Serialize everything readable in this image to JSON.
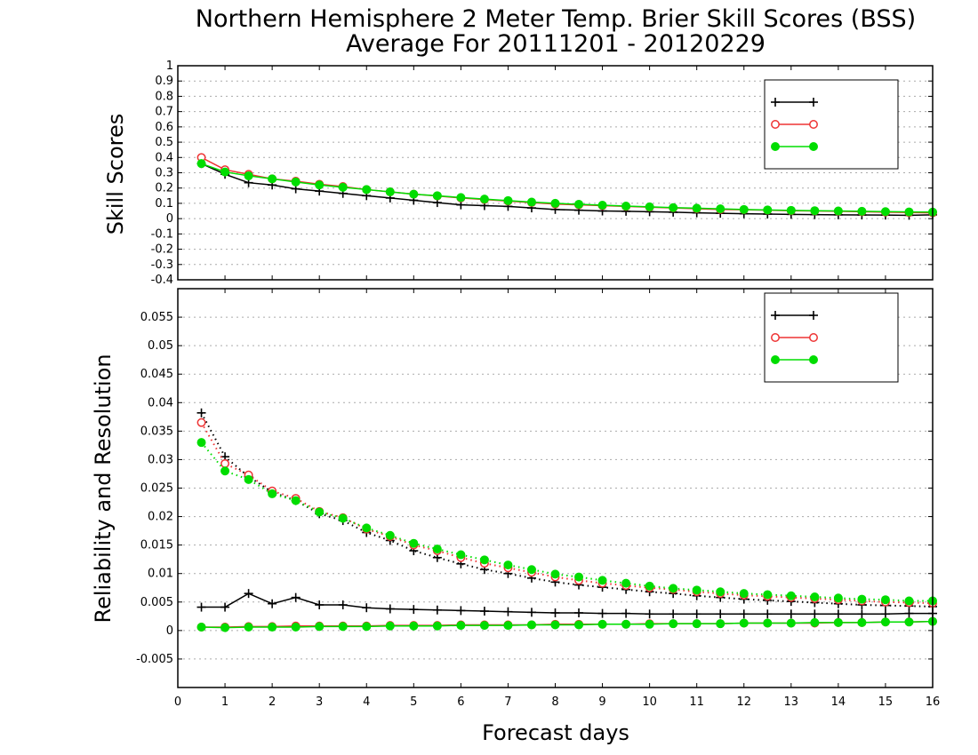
{
  "title_line1": "Northern Hemisphere 2 Meter Temp. Brier Skill Scores (BSS)",
  "title_line2": "Average For 20111201 - 20120229",
  "xlabel": "Forecast days",
  "colors": {
    "black": "#000000",
    "red": "#ee3333",
    "green": "#00dd00",
    "grid": "#aaaaaa"
  },
  "chart_data": [
    {
      "type": "line",
      "panel": "top",
      "ylabel": "Skill Scores",
      "ylim": [
        -0.4,
        1.0
      ],
      "yticks": [
        "-0.4",
        "-0.3",
        "-0.2",
        "-0.1",
        "0",
        "0.1",
        "0.2",
        "0.3",
        "0.4",
        "0.5",
        "0.6",
        "0.7",
        "0.8",
        "0.9",
        "1"
      ],
      "xlim": [
        0,
        16
      ],
      "xticks": [
        "0",
        "1",
        "2",
        "3",
        "4",
        "5",
        "6",
        "7",
        "8",
        "9",
        "10",
        "11",
        "12",
        "13",
        "14",
        "15",
        "16"
      ],
      "grid": true,
      "legend_position": "top-right",
      "x": [
        0.5,
        1,
        1.5,
        2,
        2.5,
        3,
        3.5,
        4,
        4.5,
        5,
        5.5,
        6,
        6.5,
        7,
        7.5,
        8,
        8.5,
        9,
        9.5,
        10,
        10.5,
        11,
        11.5,
        12,
        12.5,
        13,
        13.5,
        14,
        14.5,
        15,
        15.5,
        16
      ],
      "series": [
        {
          "name": "",
          "color": "black",
          "marker": "plus",
          "style": "solid",
          "values": [
            0.36,
            0.29,
            0.235,
            0.22,
            0.195,
            0.18,
            0.165,
            0.15,
            0.135,
            0.12,
            0.105,
            0.09,
            0.085,
            0.08,
            0.07,
            0.06,
            0.055,
            0.05,
            0.048,
            0.045,
            0.042,
            0.038,
            0.035,
            0.032,
            0.03,
            0.028,
            0.026,
            0.025,
            0.024,
            0.023,
            0.022,
            0.025
          ]
        },
        {
          "name": "",
          "color": "red",
          "marker": "circle",
          "style": "solid",
          "values": [
            0.4,
            0.32,
            0.29,
            0.26,
            0.245,
            0.225,
            0.21,
            0.19,
            0.175,
            0.16,
            0.148,
            0.135,
            0.125,
            0.115,
            0.105,
            0.095,
            0.09,
            0.085,
            0.08,
            0.075,
            0.07,
            0.065,
            0.06,
            0.058,
            0.055,
            0.052,
            0.05,
            0.048,
            0.045,
            0.042,
            0.04,
            0.038
          ]
        },
        {
          "name": "",
          "color": "green",
          "marker": "dot",
          "style": "solid",
          "values": [
            0.36,
            0.305,
            0.28,
            0.26,
            0.24,
            0.22,
            0.205,
            0.19,
            0.175,
            0.16,
            0.15,
            0.138,
            0.128,
            0.118,
            0.108,
            0.1,
            0.094,
            0.088,
            0.082,
            0.077,
            0.072,
            0.068,
            0.064,
            0.06,
            0.057,
            0.054,
            0.052,
            0.05,
            0.048,
            0.046,
            0.044,
            0.043
          ]
        }
      ]
    },
    {
      "type": "line",
      "panel": "bottom",
      "ylabel": "Reliability and Resolution",
      "ylim": [
        -0.01,
        0.06
      ],
      "yticks": [
        "-0.005",
        "0",
        "0.005",
        "0.01",
        "0.015",
        "0.02",
        "0.025",
        "0.03",
        "0.035",
        "0.04",
        "0.045",
        "0.05",
        "0.055"
      ],
      "xlim": [
        0,
        16
      ],
      "xticks": [
        "0",
        "1",
        "2",
        "3",
        "4",
        "5",
        "6",
        "7",
        "8",
        "9",
        "10",
        "11",
        "12",
        "13",
        "14",
        "15",
        "16"
      ],
      "grid": true,
      "legend_position": "top-right",
      "x": [
        0.5,
        1,
        1.5,
        2,
        2.5,
        3,
        3.5,
        4,
        4.5,
        5,
        5.5,
        6,
        6.5,
        7,
        7.5,
        8,
        8.5,
        9,
        9.5,
        10,
        10.5,
        11,
        11.5,
        12,
        12.5,
        13,
        13.5,
        14,
        14.5,
        15,
        15.5,
        16
      ],
      "series": [
        {
          "name": "",
          "color": "black",
          "marker": "plus",
          "style": "dotted",
          "values": [
            0.0382,
            0.0305,
            0.027,
            0.0243,
            0.0228,
            0.0205,
            0.0193,
            0.0172,
            0.0158,
            0.014,
            0.0128,
            0.0117,
            0.0107,
            0.01,
            0.0092,
            0.0085,
            0.008,
            0.0076,
            0.0072,
            0.0068,
            0.0065,
            0.0061,
            0.0058,
            0.0055,
            0.0053,
            0.0051,
            0.0049,
            0.0047,
            0.0045,
            0.0044,
            0.0043,
            0.0042
          ]
        },
        {
          "name": "",
          "color": "red",
          "marker": "circle",
          "style": "dotted",
          "values": [
            0.0365,
            0.0293,
            0.0273,
            0.0245,
            0.0232,
            0.0209,
            0.0198,
            0.0178,
            0.0165,
            0.015,
            0.014,
            0.0128,
            0.0118,
            0.011,
            0.0102,
            0.0094,
            0.0088,
            0.0083,
            0.0079,
            0.0075,
            0.0072,
            0.0068,
            0.0065,
            0.0062,
            0.006,
            0.0058,
            0.0056,
            0.0054,
            0.0052,
            0.005,
            0.0049,
            0.0048
          ]
        },
        {
          "name": "",
          "color": "green",
          "marker": "dot",
          "style": "dotted",
          "values": [
            0.033,
            0.028,
            0.0265,
            0.024,
            0.0228,
            0.0208,
            0.0197,
            0.018,
            0.0167,
            0.0153,
            0.0143,
            0.0133,
            0.0124,
            0.0115,
            0.0107,
            0.0099,
            0.0094,
            0.0088,
            0.0083,
            0.0078,
            0.0074,
            0.0071,
            0.0068,
            0.0065,
            0.0063,
            0.0061,
            0.0059,
            0.0057,
            0.0055,
            0.0054,
            0.0052,
            0.0052
          ]
        },
        {
          "name": "",
          "color": "black",
          "marker": "plus",
          "style": "solid",
          "values": [
            0.0041,
            0.0041,
            0.0065,
            0.0047,
            0.0058,
            0.0045,
            0.0045,
            0.004,
            0.0038,
            0.0037,
            0.0036,
            0.0035,
            0.0034,
            0.0033,
            0.0032,
            0.0031,
            0.0031,
            0.003,
            0.003,
            0.0029,
            0.0029,
            0.0029,
            0.0029,
            0.0029,
            0.0029,
            0.0029,
            0.0029,
            0.0029,
            0.0029,
            0.0029,
            0.003,
            0.003
          ]
        },
        {
          "name": "",
          "color": "red",
          "marker": "circle",
          "style": "solid",
          "values": [
            0.0006,
            0.0006,
            0.0007,
            0.0007,
            0.0008,
            0.0008,
            0.0008,
            0.0008,
            0.0009,
            0.0009,
            0.0009,
            0.001,
            0.001,
            0.001,
            0.001,
            0.0011,
            0.0011,
            0.0011,
            0.0011,
            0.0012,
            0.0012,
            0.0012,
            0.0012,
            0.0013,
            0.0013,
            0.0013,
            0.0013,
            0.0014,
            0.0014,
            0.0015,
            0.0015,
            0.0016
          ]
        },
        {
          "name": "",
          "color": "green",
          "marker": "dot",
          "style": "solid",
          "values": [
            0.0006,
            0.0005,
            0.0006,
            0.0006,
            0.0006,
            0.0007,
            0.0007,
            0.0007,
            0.0008,
            0.0008,
            0.0008,
            0.0009,
            0.0009,
            0.0009,
            0.001,
            0.001,
            0.001,
            0.0011,
            0.0011,
            0.0011,
            0.0012,
            0.0012,
            0.0012,
            0.0013,
            0.0013,
            0.0013,
            0.0014,
            0.0014,
            0.0014,
            0.0015,
            0.0015,
            0.0016
          ]
        }
      ]
    }
  ]
}
